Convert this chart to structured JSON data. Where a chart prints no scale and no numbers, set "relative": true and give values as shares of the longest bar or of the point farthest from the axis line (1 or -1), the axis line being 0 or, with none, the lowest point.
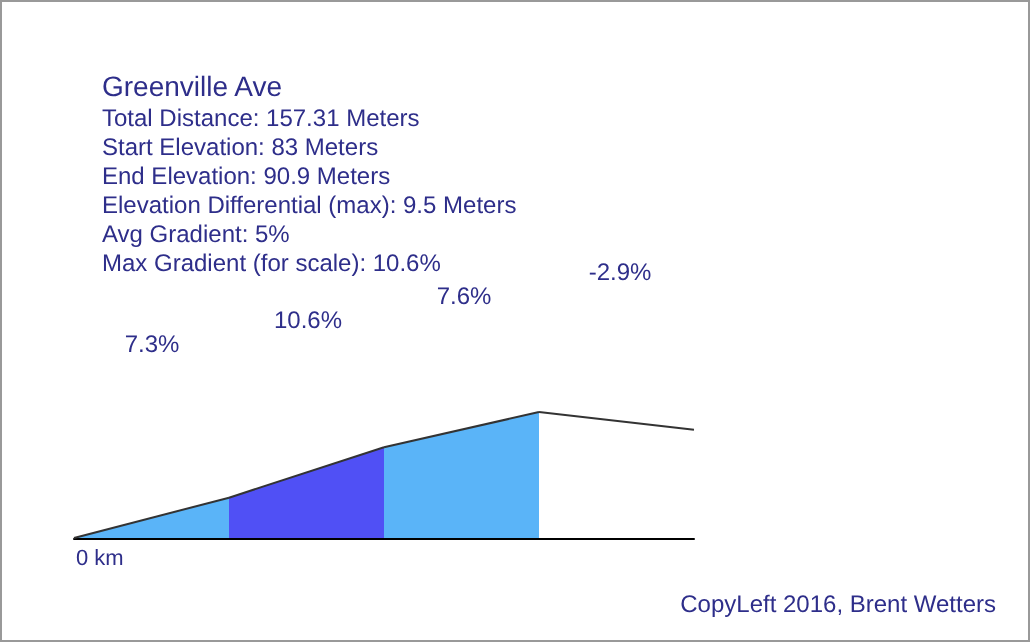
{
  "chart_data": {
    "type": "area",
    "title": "Greenville Ave",
    "subtitle": "Total Distance: 157.31 Meters\nStart Elevation: 83 Meters\nEnd Elevation: 90.9 Meters\nElevation Differential (max): 9.5 Meters\nAvg Gradient: 5%\nMax Gradient (for scale): 10.6%",
    "relative": true,
    "categories": [
      null,
      null,
      null,
      null,
      null
    ],
    "series": [
      {
        "values": [
          0,
          0.32,
          null,
          null,
          null
        ],
        "color": "#5ab4f8"
      },
      {
        "values": [
          null,
          0.32,
          0.72,
          null,
          null
        ],
        "color": "#5050f5"
      },
      {
        "values": [
          null,
          null,
          0.72,
          1,
          null
        ],
        "color": "#5ab4f8"
      },
      {
        "values": [
          null,
          null,
          null,
          1,
          0.86
        ],
        "color": "#ffffff"
      }
    ],
    "annotations": [
      "7.3%",
      "10.6%",
      "7.6%",
      "-2.9%",
      "0 km",
      "CopyLeft 2016, Brent Wetters"
    ],
    "marker": "none"
  }
}
